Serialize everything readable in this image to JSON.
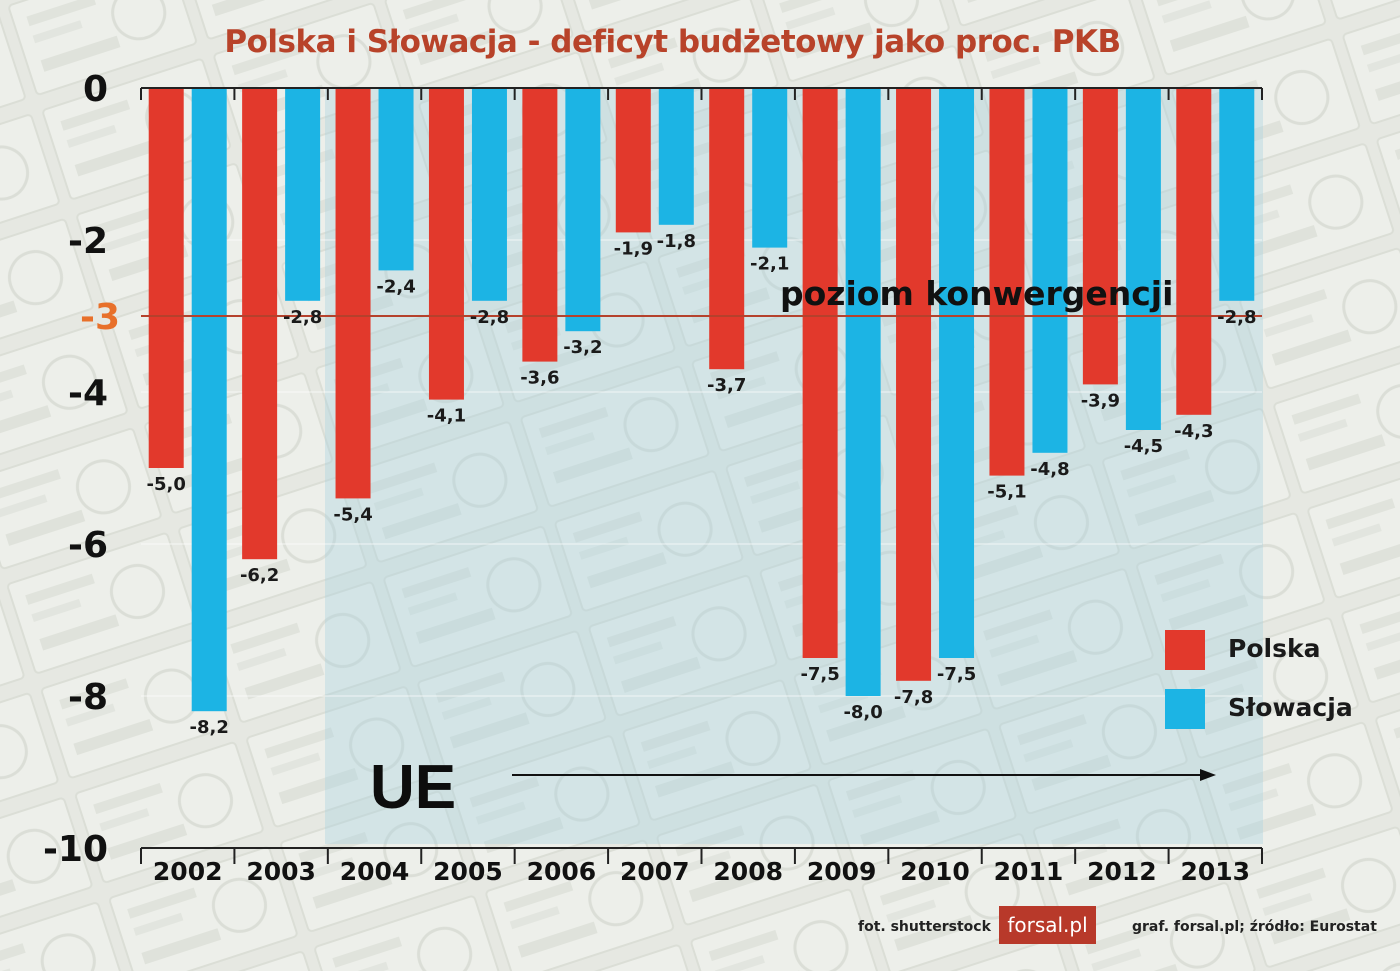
{
  "chart_data": {
    "type": "bar",
    "title": "Polska i Słowacja - deficyt budżetowy jako proc. PKB",
    "categories": [
      "2002",
      "2003",
      "2004",
      "2005",
      "2006",
      "2007",
      "2008",
      "2009",
      "2010",
      "2011",
      "2012",
      "2013"
    ],
    "series": [
      {
        "name": "Polska",
        "color": "#e2392c",
        "values": [
          -5.0,
          -6.2,
          -5.4,
          -4.1,
          -3.6,
          -1.9,
          -3.7,
          -7.5,
          -7.8,
          -5.1,
          -3.9,
          -4.3
        ],
        "labels": [
          "-5,0",
          "-6,2",
          "-5,4",
          "-4,1",
          "-3,6",
          "-1,9",
          "-3,7",
          "-7,5",
          "-7,8",
          "-5,1",
          "-3,9",
          "-4,3"
        ]
      },
      {
        "name": "Słowacja",
        "color": "#1cb4e4",
        "values": [
          -8.2,
          -2.8,
          -2.4,
          -2.8,
          -3.2,
          -1.8,
          -2.1,
          -8.0,
          -7.5,
          -4.8,
          -4.5,
          -2.8
        ],
        "labels": [
          "-8,2",
          "-2,8",
          "-2,4",
          "-2,8",
          "-3,2",
          "-1,8",
          "-2,1",
          "-8,0",
          "-7,5",
          "-4,8",
          "-4,5",
          "-2,8"
        ]
      }
    ],
    "ylim": [
      -10,
      0
    ],
    "yticks": [
      0,
      -2,
      -4,
      -6,
      -8,
      -10
    ],
    "ytick_labels": [
      "0",
      "-2",
      "-4",
      "-6",
      "-8",
      "-10"
    ],
    "grid": true,
    "legend_position": "bottom-right",
    "reference_line": {
      "value": -3,
      "label": "poziom konwergencji",
      "tick_label": "-3",
      "color": "#b5412c"
    },
    "eu_annotation": {
      "label": "UE",
      "start_category": "2004"
    }
  },
  "footer": {
    "photo_credit": "fot. shutterstock",
    "logo_text": "forsal.pl",
    "source": "graf. forsal.pl;  źródło: Eurostat"
  }
}
